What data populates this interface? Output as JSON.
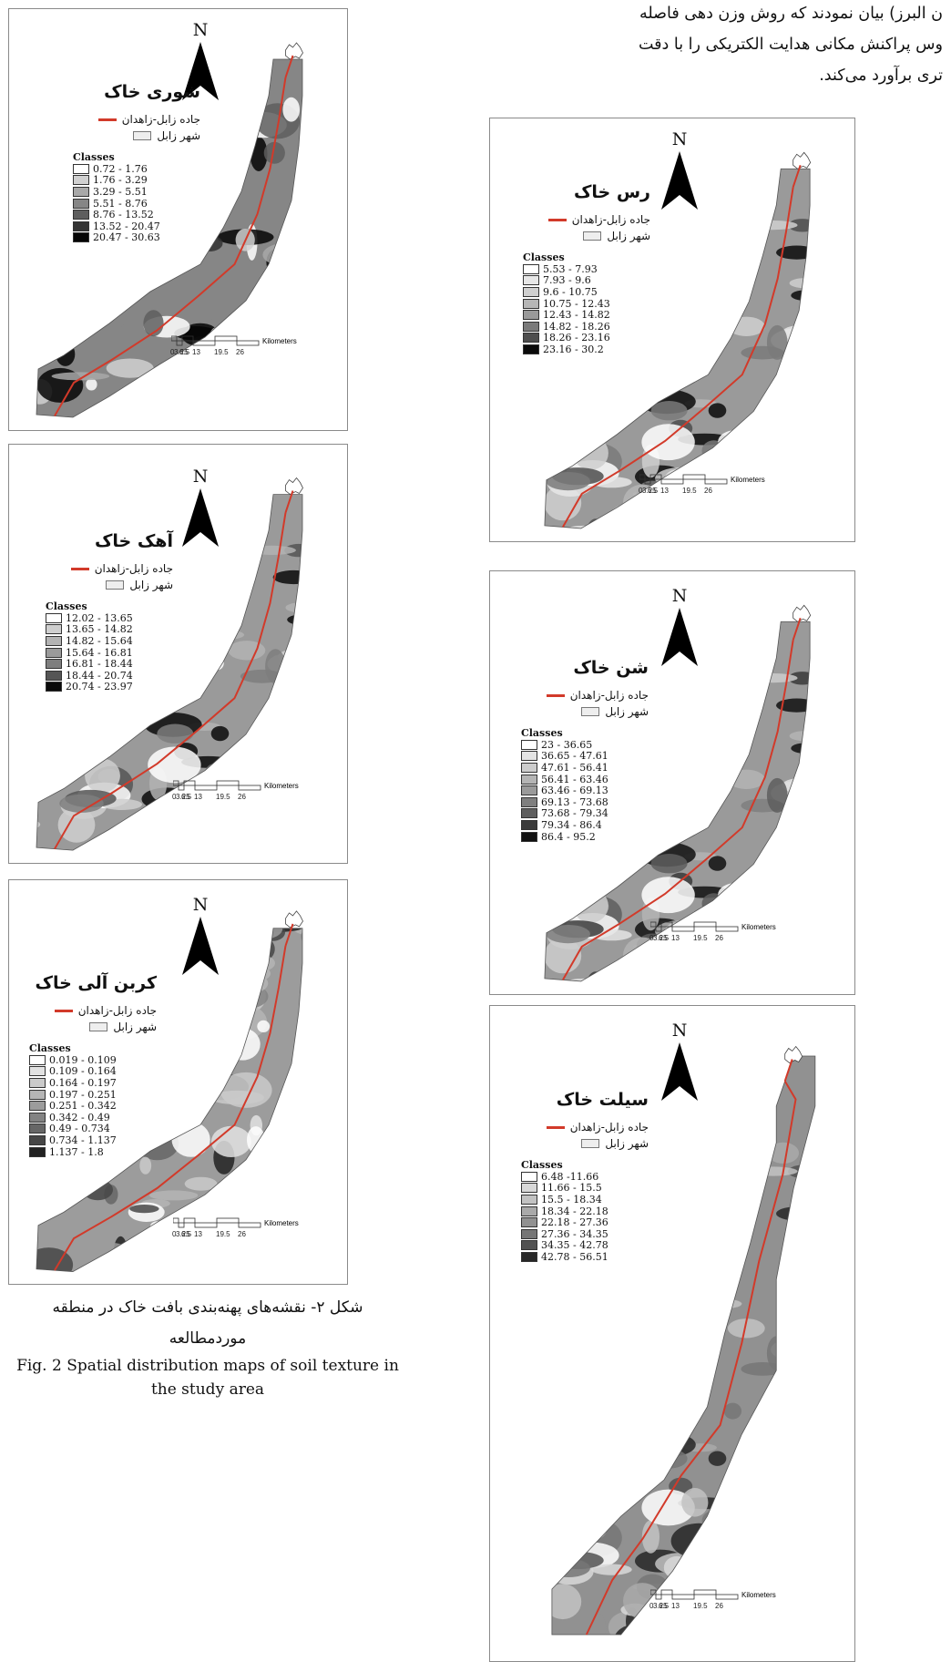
{
  "paragraph": {
    "lines": [
      "ن البرز) بیان نمودند که روش وزن دهی فاصله",
      "وس پراکنش مکانی هدایت الکتریکی را با دقت",
      "تری برآورد می‌کند."
    ]
  },
  "common": {
    "north_label": "N",
    "road_label": "جاده زابل-زاهدان",
    "city_label": "شهر زابل",
    "classes_label": "Classes",
    "scale_ticks": [
      "0",
      "3.25",
      "6.5",
      "13",
      "19.5",
      "26"
    ],
    "scale_unit": "Kilometers",
    "road_color": "#d23a2a"
  },
  "maps": {
    "salinity": {
      "title": "شوری خاک",
      "classes": [
        "0.72 - 1.76",
        "1.76 - 3.29",
        "3.29 - 5.51",
        "5.51 - 8.76",
        "8.76 - 13.52",
        "13.52 - 20.47",
        "20.47 - 30.63"
      ]
    },
    "lime": {
      "title": "آهک خاک",
      "classes": [
        "12.02 - 13.65",
        "13.65 - 14.82",
        "14.82 - 15.64",
        "15.64 - 16.81",
        "16.81 - 18.44",
        "18.44 - 20.74",
        "20.74 - 23.97"
      ]
    },
    "carbon": {
      "title": "کربن آلی خاک",
      "classes": [
        "0.019 - 0.109",
        "0.109 - 0.164",
        "0.164 - 0.197",
        "0.197 - 0.251",
        "0.251 - 0.342",
        "0.342 - 0.49",
        "0.49 - 0.734",
        "0.734 - 1.137",
        "1.137 - 1.8"
      ]
    },
    "clay": {
      "title": "رس خاک",
      "classes": [
        "5.53 - 7.93",
        "7.93 - 9.6",
        "9.6 - 10.75",
        "10.75 - 12.43",
        "12.43 - 14.82",
        "14.82 - 18.26",
        "18.26 - 23.16",
        "23.16 - 30.2"
      ]
    },
    "sand": {
      "title": "شن خاک",
      "classes": [
        "23 - 36.65",
        "36.65 - 47.61",
        "47.61 - 56.41",
        "56.41 - 63.46",
        "63.46 - 69.13",
        "69.13 - 73.68",
        "73.68 - 79.34",
        "79.34 - 86.4",
        "86.4 - 95.2"
      ]
    },
    "silt": {
      "title": "سیلت خاک",
      "classes": [
        "6.48 -11.66",
        "11.66 - 15.5",
        "15.5 - 18.34",
        "18.34 - 22.18",
        "22.18 - 27.36",
        "27.36 - 34.35",
        "34.35 - 42.78",
        "42.78 - 56.51"
      ]
    }
  },
  "caption": {
    "fa_line1": "شکل ۲- نقشه‌های پهنه‌بندی بافت خاک در منطقه",
    "fa_line2": "موردمطالعه",
    "en_line1": "Fig. 2 Spatial distribution maps of soil texture in",
    "en_line2": "the study area"
  }
}
